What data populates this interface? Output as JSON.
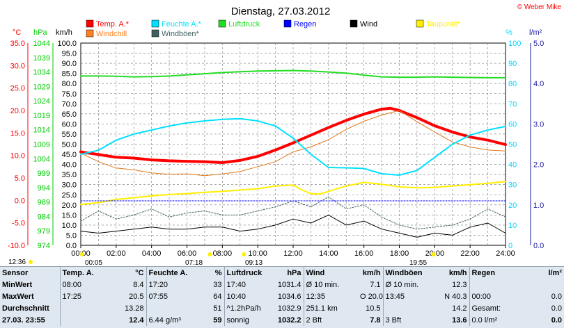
{
  "chart_data": {
    "type": "line",
    "title": "Dienstag, 27.03.2012",
    "credit": "© Weber Mike",
    "x_ticks": [
      "00:00",
      "02:00",
      "04:00",
      "06:00",
      "08:00",
      "10:00",
      "12:00",
      "14:00",
      "16:00",
      "18:00",
      "20:00",
      "22:00",
      "24:00"
    ],
    "xlim": [
      0,
      24
    ],
    "axes": {
      "temp": {
        "label": "°C",
        "ticks": [
          "35.0",
          "30.0",
          "25.0",
          "20.0",
          "15.0",
          "10.0",
          "5.0",
          "0.0",
          "-5.0",
          "-10.0"
        ],
        "range": [
          -10,
          35
        ],
        "color": "#ff0000"
      },
      "pressure": {
        "label": "hPa",
        "ticks": [
          "1044",
          "1039",
          "1034",
          "1029",
          "1024",
          "1019",
          "1014",
          "1009",
          "1004",
          "999",
          "994",
          "989",
          "984",
          "979",
          "974"
        ],
        "range": [
          974,
          1044
        ],
        "color": "#00cc00"
      },
      "wind": {
        "label": "km/h",
        "ticks": [
          "100.0",
          "95.0",
          "90.0",
          "85.0",
          "80.0",
          "75.0",
          "70.0",
          "65.0",
          "60.0",
          "55.0",
          "50.0",
          "45.0",
          "40.0",
          "35.0",
          "30.0",
          "25.0",
          "20.0",
          "15.0",
          "10.0",
          "5.0",
          "0.0"
        ],
        "range": [
          0,
          100
        ],
        "color": "#000000"
      },
      "humidity": {
        "label": "%",
        "ticks": [
          "100",
          "90",
          "80",
          "70",
          "60",
          "50",
          "40",
          "30",
          "20",
          "10",
          "0"
        ],
        "range": [
          0,
          100
        ],
        "color": "#00d8ff"
      },
      "rain": {
        "label": "l/m²",
        "ticks": [
          "5.0",
          "4.0",
          "3.0",
          "2.0",
          "1.0",
          "0.0"
        ],
        "range": [
          0,
          5
        ],
        "color": "#1a1aa0"
      }
    },
    "legend": [
      {
        "name": "Temp. A.*",
        "color": "#ff0000"
      },
      {
        "name": "Feuchte A.*",
        "color": "#00e0ff"
      },
      {
        "name": "Luftdruck",
        "color": "#22dd22"
      },
      {
        "name": "Regen",
        "color": "#0000ff"
      },
      {
        "name": "Wind",
        "color": "#000000"
      },
      {
        "name": "Taupunkt*",
        "color": "#ffee00"
      },
      {
        "name": "Windchill",
        "color": "#ff8020"
      },
      {
        "name": "Windböen*",
        "color": "#406060"
      }
    ],
    "series": [
      {
        "name": "Temp. A.*",
        "axis": "temp",
        "color": "#ff0000",
        "width": 4,
        "x": [
          0,
          1,
          2,
          3,
          4,
          5,
          6,
          7,
          8,
          9,
          10,
          11,
          12,
          13,
          14,
          15,
          16,
          17,
          17.5,
          18,
          19,
          20,
          21,
          22,
          23,
          24
        ],
        "y": [
          10.8,
          10.2,
          9.6,
          9.4,
          9.0,
          8.8,
          8.7,
          8.6,
          8.4,
          8.9,
          9.8,
          11.2,
          12.8,
          14.5,
          16.2,
          17.8,
          19.2,
          20.3,
          20.5,
          20.0,
          18.4,
          16.6,
          15.2,
          14.1,
          13.4,
          12.4
        ]
      },
      {
        "name": "Windchill",
        "axis": "temp",
        "color": "#e07818",
        "width": 1,
        "x": [
          0,
          1,
          2,
          3,
          4,
          5,
          6,
          7,
          8,
          9,
          10,
          11,
          12,
          13,
          14,
          15,
          16,
          17,
          18,
          19,
          20,
          21,
          22,
          23,
          24
        ],
        "y": [
          10.5,
          8.6,
          7.2,
          6.8,
          6.1,
          5.8,
          5.9,
          5.5,
          5.9,
          6.4,
          7.5,
          8.6,
          10.8,
          11.9,
          13.5,
          15.8,
          17.6,
          19.0,
          20.0,
          17.5,
          15.2,
          13.0,
          11.9,
          11.2,
          11.0
        ]
      },
      {
        "name": "Feuchte A.*",
        "axis": "humidity",
        "color": "#00e0ff",
        "width": 2,
        "x": [
          0,
          1,
          2,
          3,
          4,
          5,
          6,
          7,
          8,
          9,
          10,
          11,
          12,
          13,
          14,
          15,
          16,
          17,
          18,
          19,
          20,
          21,
          22,
          23,
          24
        ],
        "y": [
          45,
          47,
          52,
          55,
          57,
          59,
          60.5,
          61.5,
          62.3,
          62.6,
          61.5,
          59,
          53,
          45,
          38.5,
          38.3,
          38,
          35.4,
          34.7,
          37,
          43.5,
          50,
          54.5,
          57,
          58.8
        ]
      },
      {
        "name": "Luftdruck",
        "axis": "pressure",
        "color": "#22dd22",
        "width": 2,
        "x": [
          0,
          1,
          2,
          3,
          4,
          5,
          6,
          7,
          8,
          9,
          10,
          11,
          12,
          13,
          14,
          15,
          16,
          17,
          18,
          19,
          20,
          21,
          22,
          23,
          24
        ],
        "y": [
          1032.6,
          1032.6,
          1032.5,
          1032.3,
          1032.4,
          1032.6,
          1033.0,
          1033.4,
          1033.8,
          1034.1,
          1034.3,
          1034.4,
          1034.5,
          1034.3,
          1034.0,
          1033.6,
          1032.9,
          1032.3,
          1032.2,
          1032.2,
          1032.3,
          1032.2,
          1032.1,
          1032.0,
          1032.0
        ]
      },
      {
        "name": "Taupunkt*",
        "axis": "temp",
        "color": "#ffee00",
        "width": 2,
        "x": [
          0,
          1,
          2,
          3,
          4,
          5,
          6,
          7,
          8,
          9,
          10,
          11,
          12,
          12.5,
          13,
          13.5,
          14,
          15,
          16,
          17,
          18,
          19,
          20,
          21,
          22,
          23,
          24
        ],
        "y": [
          -0.9,
          -0.5,
          0.2,
          0.6,
          1.0,
          1.3,
          1.5,
          1.8,
          2.0,
          2.3,
          2.6,
          3.2,
          3.4,
          2.3,
          1.5,
          1.4,
          2.0,
          3.2,
          4.0,
          3.6,
          3.0,
          2.8,
          2.9,
          3.2,
          3.5,
          3.8,
          4.2
        ]
      },
      {
        "name": "Windböen*",
        "axis": "wind",
        "color": "#406060",
        "width": 1,
        "dashed": true,
        "x": [
          0,
          1,
          2,
          3,
          4,
          5,
          6,
          7,
          8,
          9,
          10,
          11,
          12,
          13,
          14,
          15,
          16,
          17,
          18,
          19,
          20,
          21,
          22,
          23,
          24
        ],
        "y": [
          12,
          17,
          13,
          15,
          18,
          14,
          16,
          17,
          15,
          15,
          17,
          19,
          22,
          19,
          24,
          18,
          20,
          14,
          10,
          8,
          9,
          10,
          13,
          18,
          14
        ]
      },
      {
        "name": "Wind",
        "axis": "wind",
        "color": "#000000",
        "width": 1,
        "x": [
          0,
          1,
          2,
          3,
          4,
          5,
          6,
          7,
          8,
          9,
          10,
          11,
          12,
          13,
          14,
          15,
          16,
          17,
          18,
          19,
          20,
          21,
          22,
          23,
          24
        ],
        "y": [
          7,
          6,
          7,
          8,
          9,
          8,
          8,
          9,
          9,
          7,
          8,
          10,
          13,
          11,
          15,
          10,
          12,
          8,
          6,
          4,
          6,
          5,
          9,
          11,
          6
        ]
      },
      {
        "name": "Regen",
        "axis": "rain",
        "color": "#0000ff",
        "width": 1,
        "dashed": true,
        "x": [
          0,
          24
        ],
        "y": [
          1.1,
          1.1
        ]
      }
    ],
    "sun_markers": [
      {
        "time": "12:36",
        "x": 0
      },
      {
        "time": "00:05",
        "x": 0.08
      },
      {
        "time": "07:18",
        "x": 7.3
      },
      {
        "time": "09:13",
        "x": 9.22
      },
      {
        "time": "19:55",
        "x": 19.92
      }
    ]
  },
  "stats": {
    "headers": [
      "Sensor",
      "Temp. A.",
      "°C",
      "Feuchte A.",
      "%",
      "Luftdruck",
      "hPa",
      "Wind",
      "km/h",
      "Windböen",
      "km/h",
      "Regen",
      "l/m²"
    ],
    "rows": [
      {
        "label": "MinWert",
        "cells": [
          "08:00",
          "8.4",
          "17:20",
          "33",
          "17:40",
          "1031.4",
          "Ø 10 min.",
          "7.1",
          "Ø 10 min.",
          "12.3",
          "",
          ""
        ]
      },
      {
        "label": "MaxWert",
        "cells": [
          "17:25",
          "20.5",
          "07:55",
          "64",
          "10:40",
          "1034.6",
          "12:35",
          "O 20.0",
          "13:45",
          "N 40.3",
          "00:00",
          "0.0"
        ]
      },
      {
        "label": "Durchschnitt",
        "cells": [
          "",
          "13.28",
          "",
          "51",
          "^1.2hPa/h",
          "1032.9",
          "251.1 km",
          "10.5",
          "",
          "14.2",
          "Gesamt:",
          "0.0"
        ]
      },
      {
        "label": "27.03. 23:55",
        "cells": [
          "",
          "12.4",
          "6.44 g/m³",
          "59",
          "sonnig",
          "1032.2",
          "2 Bft",
          "7.8",
          "3 Bft",
          "13.6",
          "0.0 l/m²",
          "0.0"
        ]
      }
    ]
  }
}
